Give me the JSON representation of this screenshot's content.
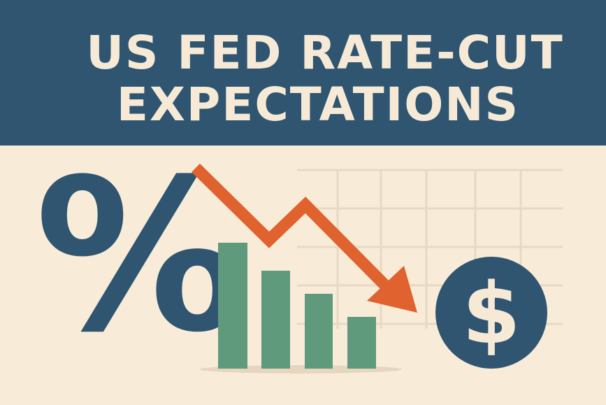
{
  "header": {
    "title_lines": [
      "US FED RATE-CUT",
      "EXPECTATIONS"
    ]
  },
  "symbols": {
    "percent": "%",
    "dollar": "$"
  }
}
